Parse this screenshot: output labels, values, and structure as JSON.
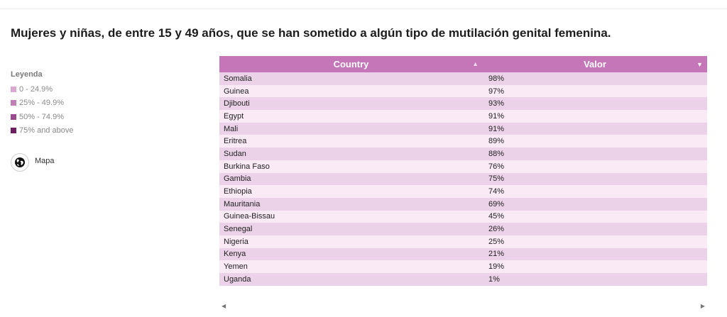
{
  "title": "Mujeres y niñas, de entre 15 y 49 años, que se han sometido a algún tipo de mutilación genital femenina.",
  "legend": {
    "title": "Leyenda",
    "items": [
      {
        "label": "0 - 24.9%",
        "color": "#d9a9d2"
      },
      {
        "label": "25% - 49.9%",
        "color": "#c07fb7"
      },
      {
        "label": "50% - 74.9%",
        "color": "#9a4a8e"
      },
      {
        "label": "75% and above",
        "color": "#6e1f63"
      }
    ]
  },
  "map_button": {
    "label": "Mapa",
    "icon": "globe-icon"
  },
  "table": {
    "headers": {
      "country": "Country",
      "valor": "Valor"
    },
    "rows": [
      {
        "country": "Somalia",
        "valor": "98%"
      },
      {
        "country": "Guinea",
        "valor": "97%"
      },
      {
        "country": "Djibouti",
        "valor": "93%"
      },
      {
        "country": "Egypt",
        "valor": "91%"
      },
      {
        "country": "Mali",
        "valor": "91%"
      },
      {
        "country": "Eritrea",
        "valor": "89%"
      },
      {
        "country": "Sudan",
        "valor": "88%"
      },
      {
        "country": "Burkina Faso",
        "valor": "76%"
      },
      {
        "country": "Gambia",
        "valor": "75%"
      },
      {
        "country": "Ethiopia",
        "valor": "74%"
      },
      {
        "country": "Mauritania",
        "valor": "69%"
      },
      {
        "country": "Guinea-Bissau",
        "valor": "45%"
      },
      {
        "country": "Senegal",
        "valor": "26%"
      },
      {
        "country": "Nigeria",
        "valor": "25%"
      },
      {
        "country": "Kenya",
        "valor": "21%"
      },
      {
        "country": "Yemen",
        "valor": "19%"
      },
      {
        "country": "Uganda",
        "valor": "1%"
      }
    ]
  },
  "colors": {
    "header_bg": "#c576b8",
    "row_odd": "#ecd2e8",
    "row_even": "#f9eaf6"
  }
}
